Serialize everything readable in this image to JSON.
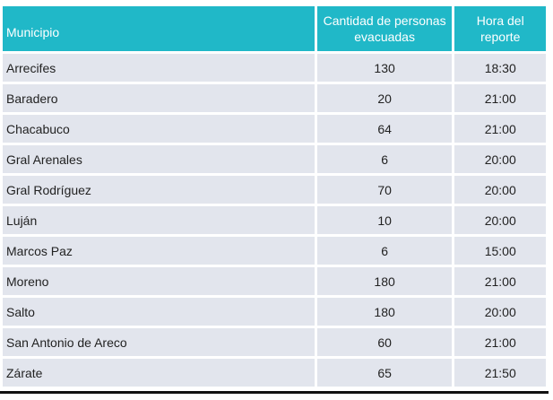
{
  "table": {
    "headers": {
      "municipio": "Municipio",
      "cantidad": "Cantidad de personas evacuadas",
      "hora": "Hora del reporte"
    },
    "rows": [
      {
        "municipio": "Arrecifes",
        "cantidad": "130",
        "hora": "18:30"
      },
      {
        "municipio": "Baradero",
        "cantidad": "20",
        "hora": "21:00"
      },
      {
        "municipio": "Chacabuco",
        "cantidad": "64",
        "hora": "21:00"
      },
      {
        "municipio": "Gral Arenales",
        "cantidad": "6",
        "hora": "20:00"
      },
      {
        "municipio": "Gral Rodríguez",
        "cantidad": "70",
        "hora": "20:00"
      },
      {
        "municipio": "Luján",
        "cantidad": "10",
        "hora": "20:00"
      },
      {
        "municipio": "Marcos Paz",
        "cantidad": "6",
        "hora": "15:00"
      },
      {
        "municipio": "Moreno",
        "cantidad": "180",
        "hora": "21:00"
      },
      {
        "municipio": "Salto",
        "cantidad": "180",
        "hora": "20:00"
      },
      {
        "municipio": "San Antonio de Areco",
        "cantidad": "60",
        "hora": "21:00"
      },
      {
        "municipio": "Zárate",
        "cantidad": "65",
        "hora": "21:50"
      }
    ]
  },
  "colors": {
    "header_bg": "#20b8c8",
    "row_bg": "#e2e5ed"
  }
}
